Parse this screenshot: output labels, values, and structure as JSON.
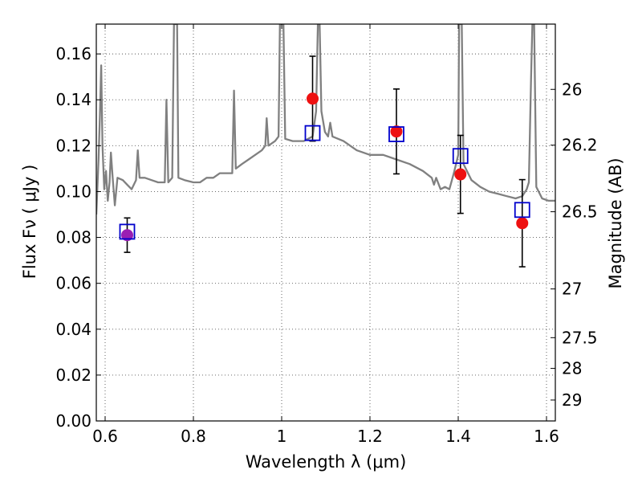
{
  "chart_data": {
    "type": "scatter",
    "xlabel": "Wavelength  λ (μm)",
    "ylabel": "Flux  Fν  ( μJy )",
    "y2label": "Magnitude (AB)",
    "xlim": [
      0.58,
      1.62
    ],
    "ylim": [
      0.0,
      0.173
    ],
    "grid": true,
    "x_ticks": [
      {
        "value": 0.6,
        "label": "0.6"
      },
      {
        "value": 0.8,
        "label": "0.8"
      },
      {
        "value": 1.0,
        "label": "1"
      },
      {
        "value": 1.2,
        "label": "1.2"
      },
      {
        "value": 1.4,
        "label": "1.4"
      },
      {
        "value": 1.6,
        "label": "1.6"
      }
    ],
    "y_ticks": [
      {
        "value": 0.0,
        "label": "0.00"
      },
      {
        "value": 0.02,
        "label": "0.02"
      },
      {
        "value": 0.04,
        "label": "0.04"
      },
      {
        "value": 0.06,
        "label": "0.06"
      },
      {
        "value": 0.08,
        "label": "0.08"
      },
      {
        "value": 0.1,
        "label": "0.10"
      },
      {
        "value": 0.12,
        "label": "0.12"
      },
      {
        "value": 0.14,
        "label": "0.14"
      },
      {
        "value": 0.16,
        "label": "0.16"
      }
    ],
    "mag_ticks": [
      {
        "mag": 26,
        "label": "26"
      },
      {
        "mag": 26.2,
        "label": "26.2"
      },
      {
        "mag": 26.5,
        "label": "26.5"
      },
      {
        "mag": 27,
        "label": "27"
      },
      {
        "mag": 27.5,
        "label": "27.5"
      },
      {
        "mag": 28,
        "label": "28"
      },
      {
        "mag": 29,
        "label": "29"
      }
    ],
    "observed": [
      {
        "x": 0.65,
        "y": 0.081,
        "err": 0.0075,
        "color": "#9a1fb3"
      },
      {
        "x": 1.07,
        "y": 0.1405,
        "err": 0.0185,
        "color": "#ee1111"
      },
      {
        "x": 1.26,
        "y": 0.1262,
        "err": 0.0185,
        "color": "#ee1111"
      },
      {
        "x": 1.405,
        "y": 0.1075,
        "err": 0.017,
        "color": "#ee1111"
      },
      {
        "x": 1.545,
        "y": 0.0862,
        "err": 0.019,
        "color": "#ee1111"
      }
    ],
    "model_points": [
      {
        "x": 0.65,
        "y": 0.0825
      },
      {
        "x": 1.07,
        "y": 0.1255
      },
      {
        "x": 1.26,
        "y": 0.125
      },
      {
        "x": 1.405,
        "y": 0.1155
      },
      {
        "x": 1.545,
        "y": 0.092
      }
    ],
    "spectrum": {
      "color": "#808080",
      "points": [
        [
          0.58,
          0.09
        ],
        [
          0.585,
          0.114
        ],
        [
          0.588,
          0.132
        ],
        [
          0.591,
          0.155
        ],
        [
          0.594,
          0.12
        ],
        [
          0.598,
          0.101
        ],
        [
          0.602,
          0.109
        ],
        [
          0.606,
          0.096
        ],
        [
          0.61,
          0.104
        ],
        [
          0.613,
          0.117
        ],
        [
          0.617,
          0.106
        ],
        [
          0.622,
          0.094
        ],
        [
          0.628,
          0.106
        ],
        [
          0.64,
          0.105
        ],
        [
          0.65,
          0.103
        ],
        [
          0.66,
          0.101
        ],
        [
          0.67,
          0.105
        ],
        [
          0.674,
          0.118
        ],
        [
          0.678,
          0.106
        ],
        [
          0.69,
          0.106
        ],
        [
          0.705,
          0.105
        ],
        [
          0.72,
          0.104
        ],
        [
          0.735,
          0.104
        ],
        [
          0.739,
          0.14
        ],
        [
          0.743,
          0.104
        ],
        [
          0.752,
          0.106
        ],
        [
          0.756,
          0.173
        ],
        [
          0.759,
          0.173
        ],
        [
          0.763,
          0.173
        ],
        [
          0.766,
          0.106
        ],
        [
          0.78,
          0.105
        ],
        [
          0.8,
          0.104
        ],
        [
          0.815,
          0.104
        ],
        [
          0.83,
          0.106
        ],
        [
          0.845,
          0.106
        ],
        [
          0.86,
          0.108
        ],
        [
          0.875,
          0.108
        ],
        [
          0.888,
          0.108
        ],
        [
          0.892,
          0.144
        ],
        [
          0.896,
          0.11
        ],
        [
          0.91,
          0.112
        ],
        [
          0.925,
          0.114
        ],
        [
          0.94,
          0.116
        ],
        [
          0.955,
          0.118
        ],
        [
          0.963,
          0.12
        ],
        [
          0.966,
          0.132
        ],
        [
          0.97,
          0.12
        ],
        [
          0.985,
          0.122
        ],
        [
          0.993,
          0.124
        ],
        [
          0.996,
          0.173
        ],
        [
          1.004,
          0.173
        ],
        [
          1.008,
          0.123
        ],
        [
          1.025,
          0.122
        ],
        [
          1.05,
          0.122
        ],
        [
          1.07,
          0.124
        ],
        [
          1.078,
          0.135
        ],
        [
          1.082,
          0.173
        ],
        [
          1.086,
          0.173
        ],
        [
          1.09,
          0.135
        ],
        [
          1.098,
          0.126
        ],
        [
          1.105,
          0.124
        ],
        [
          1.11,
          0.13
        ],
        [
          1.115,
          0.124
        ],
        [
          1.14,
          0.122
        ],
        [
          1.17,
          0.118
        ],
        [
          1.2,
          0.116
        ],
        [
          1.23,
          0.116
        ],
        [
          1.26,
          0.114
        ],
        [
          1.29,
          0.112
        ],
        [
          1.32,
          0.109
        ],
        [
          1.34,
          0.106
        ],
        [
          1.345,
          0.103
        ],
        [
          1.35,
          0.106
        ],
        [
          1.36,
          0.101
        ],
        [
          1.37,
          0.102
        ],
        [
          1.38,
          0.101
        ],
        [
          1.39,
          0.108
        ],
        [
          1.395,
          0.112
        ],
        [
          1.4,
          0.116
        ],
        [
          1.402,
          0.173
        ],
        [
          1.408,
          0.173
        ],
        [
          1.412,
          0.112
        ],
        [
          1.43,
          0.105
        ],
        [
          1.45,
          0.102
        ],
        [
          1.47,
          0.1
        ],
        [
          1.49,
          0.099
        ],
        [
          1.51,
          0.098
        ],
        [
          1.53,
          0.097
        ],
        [
          1.545,
          0.098
        ],
        [
          1.555,
          0.101
        ],
        [
          1.56,
          0.104
        ],
        [
          1.565,
          0.15
        ],
        [
          1.568,
          0.173
        ],
        [
          1.572,
          0.173
        ],
        [
          1.577,
          0.102
        ],
        [
          1.59,
          0.097
        ],
        [
          1.605,
          0.096
        ],
        [
          1.62,
          0.096
        ]
      ]
    }
  }
}
